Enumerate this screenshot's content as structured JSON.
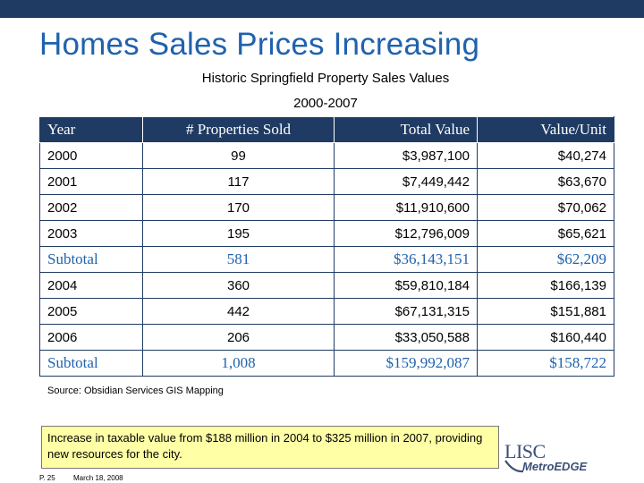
{
  "slide": {
    "title": "Homes Sales Prices Increasing",
    "subtitle_line1": "Historic Springfield Property Sales Values",
    "subtitle_line2": "2000-2007"
  },
  "table": {
    "headers": [
      "Year",
      "# Properties Sold",
      "Total Value",
      "Value/Unit"
    ],
    "rows": [
      {
        "year": "2000",
        "sold": "99",
        "total": "$3,987,100",
        "unit": "$40,274",
        "subtotal": false
      },
      {
        "year": "2001",
        "sold": "117",
        "total": "$7,449,442",
        "unit": "$63,670",
        "subtotal": false
      },
      {
        "year": "2002",
        "sold": "170",
        "total": "$11,910,600",
        "unit": "$70,062",
        "subtotal": false
      },
      {
        "year": "2003",
        "sold": "195",
        "total": "$12,796,009",
        "unit": "$65,621",
        "subtotal": false
      },
      {
        "year": "Subtotal",
        "sold": "581",
        "total": "$36,143,151",
        "unit": "$62,209",
        "subtotal": true
      },
      {
        "year": "2004",
        "sold": "360",
        "total": "$59,810,184",
        "unit": "$166,139",
        "subtotal": false
      },
      {
        "year": "2005",
        "sold": "442",
        "total": "$67,131,315",
        "unit": "$151,881",
        "subtotal": false
      },
      {
        "year": "2006",
        "sold": "206",
        "total": "$33,050,588",
        "unit": "$160,440",
        "subtotal": false
      },
      {
        "year": "Subtotal",
        "sold": "1,008",
        "total": "$159,992,087",
        "unit": "$158,722",
        "subtotal": true
      }
    ]
  },
  "source": "Source: Obsidian Services GIS Mapping",
  "note": "Increase in taxable value from $188 million in 2004 to $325 million in 2007, providing new resources for the city.",
  "footer": {
    "page": "P. 25",
    "date": "March 18, 2008"
  },
  "logo": {
    "line1": "LISC",
    "line2": "MetroEDGE"
  },
  "colors": {
    "header_bar": "#1f3b63",
    "title": "#1f62ad",
    "subtotal_text": "#1f62ad",
    "note_background": "#ffffa6"
  }
}
